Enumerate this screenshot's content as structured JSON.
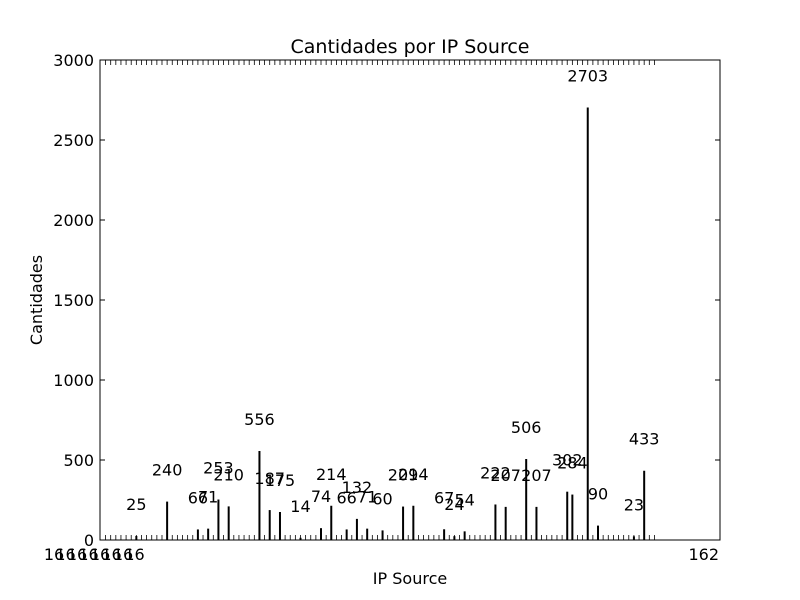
{
  "chart_data": {
    "type": "bar",
    "title": "Cantidades por IP Source",
    "xlabel": "IP Source",
    "ylabel": "Cantidades",
    "ylim": [
      0,
      3000
    ],
    "yticks": [
      0,
      500,
      1000,
      1500,
      2000,
      2500,
      3000
    ],
    "grid": false,
    "legend": "none",
    "colors": {
      "bar": "#000000",
      "axis": "#000000",
      "background": "#ffffff"
    },
    "x_tick_labels_visible": [
      "16",
      "16",
      "16",
      "16",
      "16",
      "16",
      "16",
      "16",
      "162"
    ],
    "categories_count": 108,
    "values": [
      0,
      0,
      0,
      0,
      0,
      0,
      25,
      0,
      0,
      0,
      0,
      0,
      240,
      0,
      0,
      0,
      0,
      0,
      66,
      0,
      71,
      0,
      253,
      0,
      210,
      0,
      0,
      0,
      0,
      0,
      556,
      0,
      187,
      0,
      175,
      0,
      0,
      0,
      14,
      0,
      0,
      0,
      74,
      0,
      214,
      0,
      0,
      66,
      0,
      132,
      0,
      71,
      0,
      0,
      60,
      0,
      0,
      0,
      209,
      0,
      214,
      0,
      0,
      0,
      0,
      0,
      67,
      0,
      24,
      0,
      54,
      0,
      0,
      0,
      0,
      0,
      222,
      0,
      207,
      0,
      0,
      0,
      506,
      0,
      207,
      0,
      0,
      0,
      0,
      0,
      302,
      284,
      0,
      0,
      2703,
      0,
      90,
      0,
      0,
      0,
      0,
      0,
      0,
      23,
      0,
      433,
      0,
      0
    ]
  }
}
